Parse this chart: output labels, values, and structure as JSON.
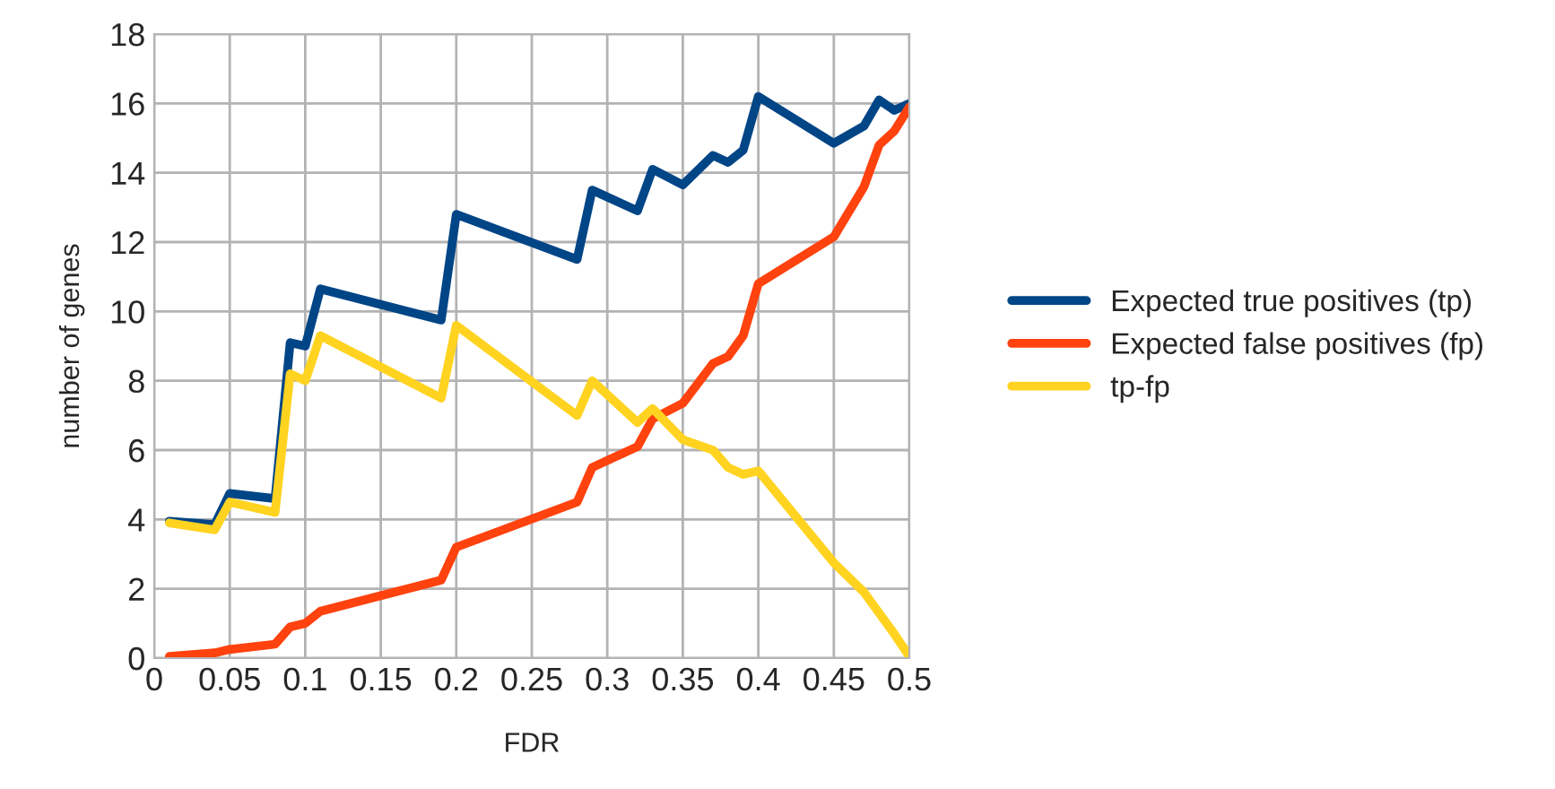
{
  "chart_data": {
    "type": "line",
    "xlabel": "FDR",
    "ylabel": "number of genes",
    "x": [
      0.01,
      0.04,
      0.05,
      0.08,
      0.09,
      0.1,
      0.11,
      0.19,
      0.2,
      0.28,
      0.29,
      0.32,
      0.33,
      0.35,
      0.37,
      0.38,
      0.39,
      0.4,
      0.45,
      0.47,
      0.48,
      0.49,
      0.5
    ],
    "series": [
      {
        "name": "Expected true positives (tp)",
        "color": "#004586",
        "values": [
          3.95,
          3.85,
          4.75,
          4.6,
          9.1,
          9.0,
          10.65,
          9.75,
          12.8,
          11.5,
          13.5,
          12.9,
          14.1,
          13.65,
          14.5,
          14.3,
          14.65,
          16.2,
          14.85,
          15.35,
          16.1,
          15.8,
          16.0
        ]
      },
      {
        "name": "Expected false positives (fp)",
        "color": "#ff420e",
        "values": [
          0.05,
          0.15,
          0.25,
          0.4,
          0.9,
          1.0,
          1.35,
          2.25,
          3.2,
          4.5,
          5.5,
          6.1,
          6.9,
          7.35,
          8.5,
          8.7,
          9.3,
          10.8,
          12.15,
          13.6,
          14.8,
          15.2,
          15.9
        ]
      },
      {
        "name": "tp-fp",
        "color": "#ffd320",
        "values": [
          3.9,
          3.7,
          4.5,
          4.2,
          8.2,
          8.0,
          9.3,
          7.5,
          9.6,
          7.0,
          8.0,
          6.8,
          7.2,
          6.3,
          6.0,
          5.5,
          5.3,
          5.4,
          2.75,
          1.9,
          1.3,
          0.7,
          0.05
        ]
      }
    ],
    "xlim": [
      0,
      0.5
    ],
    "xticks": [
      0,
      0.05,
      0.1,
      0.15,
      0.2,
      0.25,
      0.3,
      0.35,
      0.4,
      0.45,
      0.5
    ],
    "ylim": [
      0,
      18
    ],
    "yticks": [
      0,
      2,
      4,
      6,
      8,
      10,
      12,
      14,
      16,
      18
    ],
    "grid": true,
    "legend": "right",
    "marker": "none",
    "line_style": "solid"
  }
}
